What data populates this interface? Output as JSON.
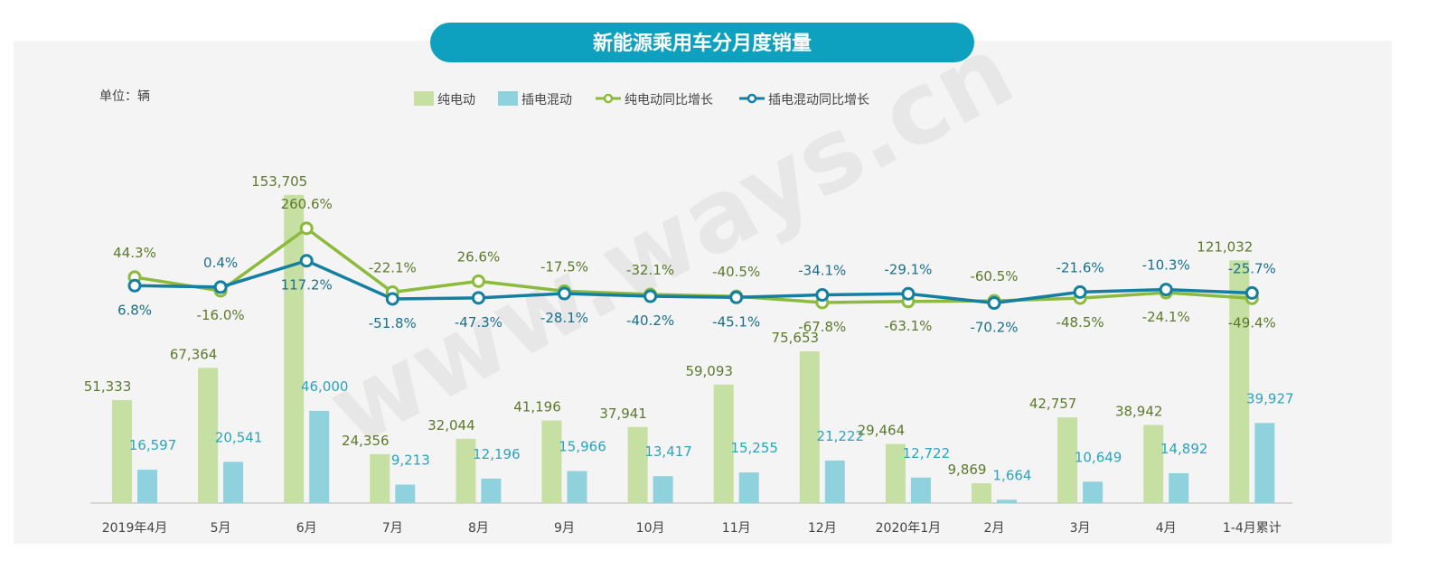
{
  "chart_data": {
    "type": "bar",
    "title": "新能源乘用车分月度销量",
    "unit_label": "单位：辆",
    "watermark": "www.ways.cn",
    "categories": [
      "2019年4月",
      "5月",
      "6月",
      "7月",
      "8月",
      "9月",
      "10月",
      "11月",
      "12月",
      "2020年1月",
      "2月",
      "3月",
      "4月",
      "1-4月累计"
    ],
    "series": [
      {
        "name": "纯电动",
        "kind": "bar",
        "color": "#c6dfa2",
        "label_color": "#5b7a2c",
        "values": [
          51333,
          67364,
          153705,
          24356,
          32044,
          41196,
          37941,
          59093,
          75653,
          29464,
          9869,
          42757,
          38942,
          121032
        ],
        "labels": [
          "51,333",
          "67,364",
          "153,705",
          "24,356",
          "32,044",
          "41,196",
          "37,941",
          "59,093",
          "75,653",
          "29,464",
          "9,869",
          "42,757",
          "38,942",
          "121,032"
        ]
      },
      {
        "name": "插电混动",
        "kind": "bar",
        "color": "#8fd1dc",
        "label_color": "#2aa3bf",
        "values": [
          16597,
          20541,
          46000,
          9213,
          12196,
          15966,
          13417,
          15255,
          21222,
          12722,
          1664,
          10649,
          14892,
          39927
        ],
        "labels": [
          "16,597",
          "20,541",
          "46,000",
          "9,213",
          "12,196",
          "15,966",
          "13,417",
          "15,255",
          "21,222",
          "12,722",
          "1,664",
          "10,649",
          "14,892",
          "39,927"
        ]
      },
      {
        "name": "纯电动同比增长",
        "kind": "line",
        "color": "#8cba3c",
        "label_color": "#5b7a2c",
        "values": [
          44.3,
          -16.0,
          260.6,
          -22.1,
          26.6,
          -17.5,
          -32.1,
          -40.5,
          -67.8,
          -63.1,
          -60.5,
          -48.5,
          -24.1,
          -49.4
        ],
        "labels": [
          "44.3%",
          "-16.0%",
          "260.6%",
          "-22.1%",
          "26.6%",
          "-17.5%",
          "-32.1%",
          "-40.5%",
          "-67.8%",
          "-63.1%",
          "-60.5%",
          "-48.5%",
          "-24.1%",
          "-49.4%"
        ]
      },
      {
        "name": "插电混动同比增长",
        "kind": "line",
        "color": "#157fa2",
        "label_color": "#1a6f8f",
        "values": [
          6.8,
          0.4,
          117.2,
          -51.8,
          -47.3,
          -28.1,
          -40.2,
          -45.1,
          -34.1,
          -29.1,
          -70.2,
          -21.6,
          -10.3,
          -25.7
        ],
        "labels": [
          "6.8%",
          "0.4%",
          "117.2%",
          "-51.8%",
          "-47.3%",
          "-28.1%",
          "-40.2%",
          "-45.1%",
          "-34.1%",
          "-29.1%",
          "-70.2%",
          "-21.6%",
          "-10.3%",
          "-25.7%"
        ]
      }
    ],
    "ylabel": "辆",
    "grid": false,
    "legend_position": "top-center",
    "title_color": "#0ea1bf"
  }
}
